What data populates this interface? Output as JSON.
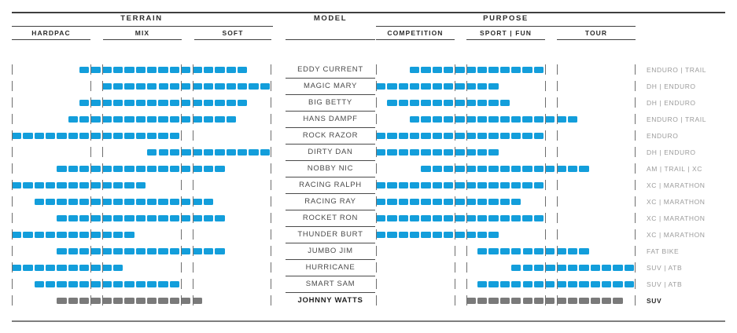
{
  "header": {
    "terrain": {
      "label": "TERRAIN",
      "zones": [
        "HARDPAC",
        "MIX",
        "SOFT"
      ]
    },
    "model": {
      "label": "MODEL"
    },
    "purpose": {
      "label": "PURPOSE",
      "zones": [
        "COMPETITION",
        "SPORT | FUN",
        "TOUR"
      ]
    }
  },
  "colors": {
    "bar_blue": "#139edb",
    "bar_gray": "#7a7a7a",
    "tick": "#6e6e6e"
  },
  "chart_data": {
    "type": "table",
    "title": "Tire model comparison matrix: terrain range and purpose range per model",
    "scale": {
      "slots_total": 23,
      "gap_slots": [
        7,
        15
      ],
      "terrain_zone_slots": {
        "HARDPAC": [
          0,
          6
        ],
        "MIX": [
          8,
          14
        ],
        "SOFT": [
          16,
          22
        ]
      },
      "purpose_zone_slots": {
        "COMPETITION": [
          0,
          6
        ],
        "SPORT | FUN": [
          8,
          14
        ],
        "TOUR": [
          16,
          22
        ]
      },
      "tick_slot_boundaries": [
        0,
        7,
        8,
        15,
        16,
        23
      ]
    },
    "rows": [
      {
        "model": "EDDY CURRENT",
        "terrain": [
          6,
          20
        ],
        "purpose": [
          3,
          14
        ],
        "category": "ENDURO | TRAIL",
        "highlight": false
      },
      {
        "model": "MAGIC MARY",
        "terrain": [
          8,
          22
        ],
        "purpose": [
          0,
          10
        ],
        "category": "DH | ENDURO",
        "highlight": false
      },
      {
        "model": "BIG BETTY",
        "terrain": [
          6,
          20
        ],
        "purpose": [
          1,
          11
        ],
        "category": "DH | ENDURO",
        "highlight": false
      },
      {
        "model": "HANS DAMPF",
        "terrain": [
          5,
          19
        ],
        "purpose": [
          3,
          17
        ],
        "category": "ENDURO | TRAIL",
        "highlight": false
      },
      {
        "model": "ROCK RAZOR",
        "terrain": [
          0,
          14
        ],
        "purpose": [
          0,
          14
        ],
        "category": "ENDURO",
        "highlight": false
      },
      {
        "model": "DIRTY DAN",
        "terrain": [
          12,
          22
        ],
        "purpose": [
          0,
          10
        ],
        "category": "DH | ENDURO",
        "highlight": false
      },
      {
        "model": "NOBBY NIC",
        "terrain": [
          4,
          18
        ],
        "purpose": [
          4,
          18
        ],
        "category": "AM | TRAIL | XC",
        "highlight": false
      },
      {
        "model": "RACING RALPH",
        "terrain": [
          0,
          11
        ],
        "purpose": [
          0,
          14
        ],
        "category": "XC | MARATHON",
        "highlight": false
      },
      {
        "model": "RACING RAY",
        "terrain": [
          2,
          17
        ],
        "purpose": [
          0,
          12
        ],
        "category": "XC | MARATHON",
        "highlight": false
      },
      {
        "model": "ROCKET RON",
        "terrain": [
          4,
          18
        ],
        "purpose": [
          0,
          14
        ],
        "category": "XC | MARATHON",
        "highlight": false
      },
      {
        "model": "THUNDER BURT",
        "terrain": [
          0,
          10
        ],
        "purpose": [
          0,
          10
        ],
        "category": "XC | MARATHON",
        "highlight": false
      },
      {
        "model": "JUMBO JIM",
        "terrain": [
          4,
          18
        ],
        "purpose": [
          9,
          18
        ],
        "category": "FAT BIKE",
        "highlight": false
      },
      {
        "model": "HURRICANE",
        "terrain": [
          0,
          9
        ],
        "purpose": [
          12,
          22
        ],
        "category": "SUV | ATB",
        "highlight": false
      },
      {
        "model": "SMART SAM",
        "terrain": [
          2,
          14
        ],
        "purpose": [
          9,
          22
        ],
        "category": "SUV | ATB",
        "highlight": false
      },
      {
        "model": "JOHNNY WATTS",
        "terrain": [
          4,
          16
        ],
        "purpose": [
          8,
          21
        ],
        "category": "SUV",
        "highlight": true
      }
    ]
  }
}
